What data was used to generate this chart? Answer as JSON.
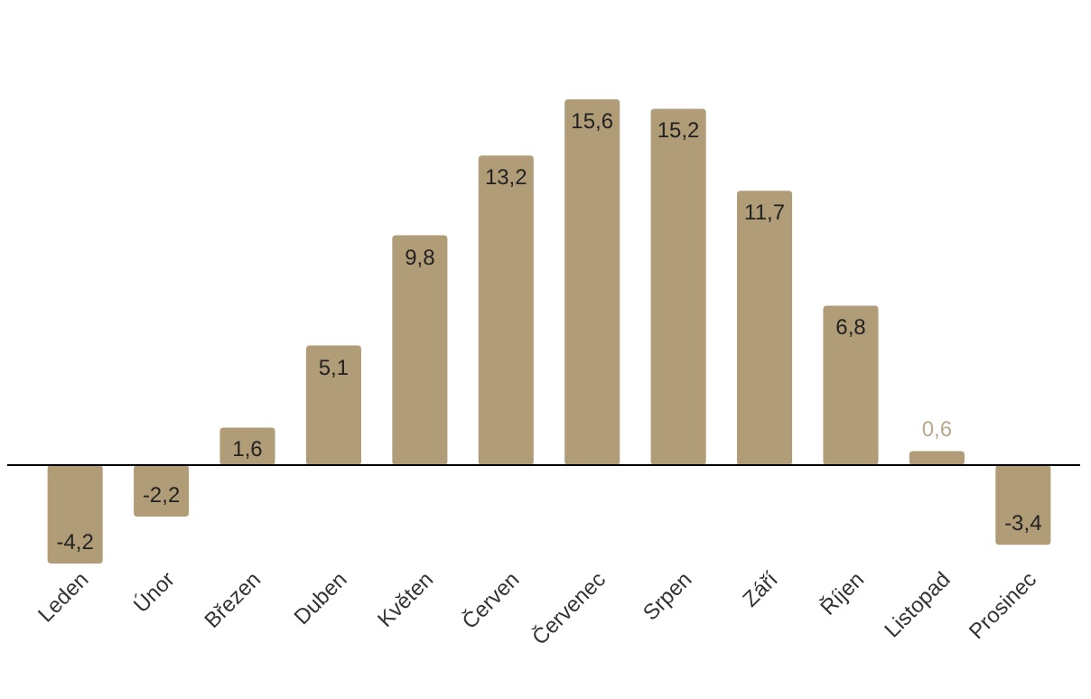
{
  "chart_data": {
    "type": "bar",
    "categories": [
      "Leden",
      "Únor",
      "Březen",
      "Duben",
      "Květen",
      "Červen",
      "Červenec",
      "Srpen",
      "Září",
      "Říjen",
      "Listopad",
      "Prosinec"
    ],
    "values": [
      -4.2,
      -2.2,
      1.6,
      5.1,
      9.8,
      13.2,
      15.6,
      15.2,
      11.7,
      6.8,
      0.6,
      -3.4
    ],
    "color": "#b19c78",
    "data_labels": true,
    "value_labels": [
      "-4,2",
      "-2,2",
      "1,6",
      "5,1",
      "9,8",
      "13,2",
      "15,6",
      "15,2",
      "11,7",
      "6,8",
      "0,6",
      "-3,4"
    ]
  }
}
